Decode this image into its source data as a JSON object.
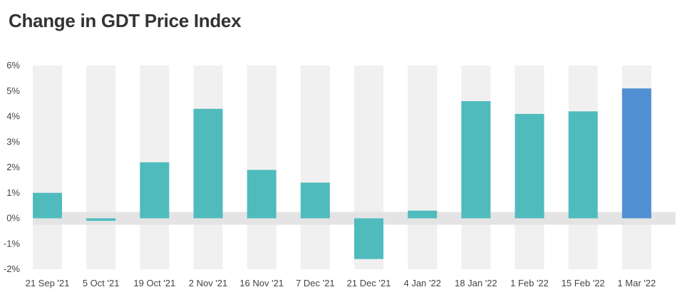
{
  "title": "Change in GDT Price Index",
  "colors": {
    "bar": "#4FBBBD",
    "highlight": "#5090D3",
    "band": "#F0F0F0",
    "zero_band": "#E4E4E4",
    "grid": "#DDDDDD"
  },
  "chart_data": {
    "type": "bar",
    "title": "Change in GDT Price Index",
    "xlabel": "",
    "ylabel": "",
    "ylim": [
      -2,
      6
    ],
    "yticks": [
      "6%",
      "5%",
      "4%",
      "3%",
      "2%",
      "1%",
      "0%",
      "-1%",
      "-2%"
    ],
    "categories": [
      "21 Sep '21",
      "5 Oct '21",
      "19 Oct '21",
      "2 Nov '21",
      "16 Nov '21",
      "7 Dec '21",
      "21 Dec '21",
      "4 Jan '22",
      "18 Jan '22",
      "1 Feb '22",
      "15 Feb '22",
      "1 Mar '22"
    ],
    "values": [
      1.0,
      -0.1,
      2.2,
      4.3,
      1.9,
      1.4,
      -1.6,
      0.3,
      4.6,
      4.1,
      4.2,
      5.1
    ],
    "highlight_index": 11,
    "grid": false,
    "legend": "none"
  }
}
